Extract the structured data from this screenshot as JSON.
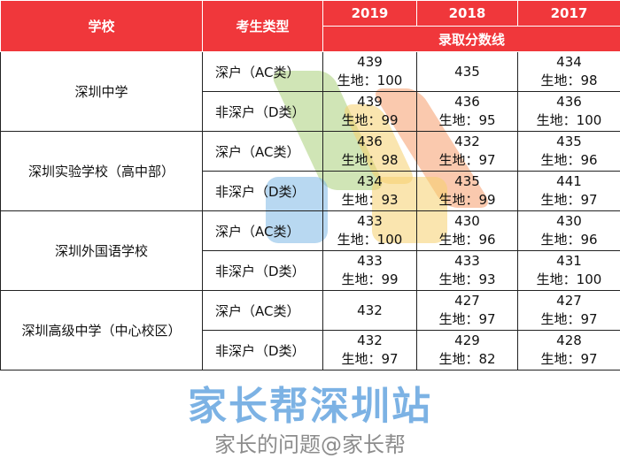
{
  "header": {
    "school": "学校",
    "type": "考生类型",
    "years": [
      "2019",
      "2018",
      "2017"
    ],
    "subheader": "录取分数线"
  },
  "colors": {
    "header_bg": "#f0373b",
    "header_text": "#ffffff"
  },
  "schools": [
    {
      "name": "深圳中学",
      "rows": [
        {
          "type": "深户（AC类）",
          "cells": [
            [
              "439",
              "生地：100"
            ],
            [
              "435",
              ""
            ],
            [
              "434",
              "生地：98"
            ]
          ]
        },
        {
          "type": "非深户（D类）",
          "cells": [
            [
              "439",
              "生地：99"
            ],
            [
              "436",
              "生地：95"
            ],
            [
              "436",
              "生地：100"
            ]
          ]
        }
      ]
    },
    {
      "name": "深圳实验学校（高中部）",
      "rows": [
        {
          "type": "深户（AC类）",
          "cells": [
            [
              "436",
              "生地：98"
            ],
            [
              "432",
              "生地：97"
            ],
            [
              "435",
              "生地：96"
            ]
          ]
        },
        {
          "type": "非深户（D类）",
          "cells": [
            [
              "434",
              "生地：93"
            ],
            [
              "435",
              "生地：99"
            ],
            [
              "441",
              "生地：97"
            ]
          ]
        }
      ]
    },
    {
      "name": "深圳外国语学校",
      "rows": [
        {
          "type": "深户（AC类）",
          "cells": [
            [
              "433",
              "生地：100"
            ],
            [
              "430",
              "生地：96"
            ],
            [
              "430",
              "生地：96"
            ]
          ]
        },
        {
          "type": "非深户（D类）",
          "cells": [
            [
              "433",
              "生地：99"
            ],
            [
              "433",
              "生地：93"
            ],
            [
              "431",
              "生地：100"
            ]
          ]
        }
      ]
    },
    {
      "name": "深圳高级中学（中心校区）",
      "rows": [
        {
          "type": "深户（AC类）",
          "cells": [
            [
              "432",
              ""
            ],
            [
              "427",
              "生地：97"
            ],
            [
              "427",
              "生地：97"
            ]
          ]
        },
        {
          "type": "非深户（D类）",
          "cells": [
            [
              "432",
              "生地：97"
            ],
            [
              "429",
              "生地：82"
            ],
            [
              "428",
              "生地：97"
            ]
          ]
        }
      ]
    }
  ],
  "watermark": {
    "brand": "家长帮深圳站",
    "caption": "家长的问题@家长帮"
  }
}
